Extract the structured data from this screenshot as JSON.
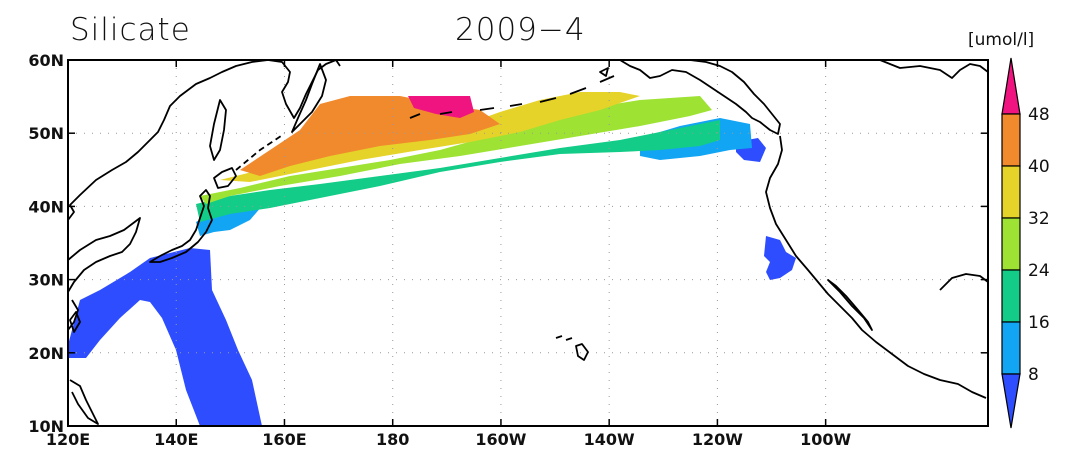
{
  "title": {
    "variable": "Silicate",
    "date": "2009−4"
  },
  "map": {
    "lon_range": [
      120,
      290
    ],
    "lat_range": [
      10,
      60
    ],
    "lon_ticks": [
      {
        "v": 120,
        "label": "120E"
      },
      {
        "v": 140,
        "label": "140E"
      },
      {
        "v": 160,
        "label": "160E"
      },
      {
        "v": 180,
        "label": "180"
      },
      {
        "v": 200,
        "label": "160W"
      },
      {
        "v": 220,
        "label": "140W"
      },
      {
        "v": 240,
        "label": "120W"
      },
      {
        "v": 260,
        "label": "100W"
      }
    ],
    "lat_ticks": [
      {
        "v": 60,
        "label": "60N"
      },
      {
        "v": 50,
        "label": "50N"
      },
      {
        "v": 40,
        "label": "40N"
      },
      {
        "v": 30,
        "label": "30N"
      },
      {
        "v": 20,
        "label": "20N"
      },
      {
        "v": 10,
        "label": "10N"
      }
    ],
    "grid": true
  },
  "colorbar": {
    "unit": "[umol/l]",
    "levels": [
      8,
      16,
      24,
      32,
      40,
      48
    ],
    "colors": [
      "#2d4dff",
      "#12a5f4",
      "#12cc88",
      "#9ee234",
      "#e5d32a",
      "#f18a2c",
      "#ef1480"
    ],
    "labels": [
      "8",
      "16",
      "24",
      "32",
      "40",
      "48"
    ]
  }
}
